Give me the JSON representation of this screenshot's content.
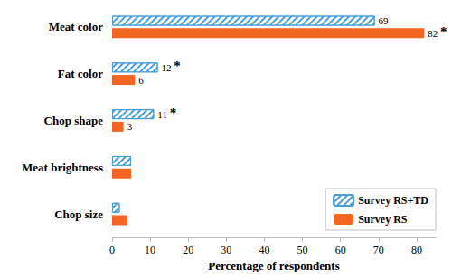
{
  "chart_data": {
    "type": "bar",
    "orientation": "horizontal",
    "x_label": "Percentage of respondents",
    "categories": [
      "Meat color",
      "Fat color",
      "Chop shape",
      "Meat brightness",
      "Chop size"
    ],
    "series": [
      {
        "name": "Survey RS+TD",
        "color": "#4a9fd8",
        "marker": "hatch",
        "values": [
          69,
          12,
          11,
          5,
          2
        ],
        "value_labels": [
          "69",
          "12",
          "11",
          null,
          null
        ]
      },
      {
        "name": "Survey RS",
        "color": "#f26522",
        "values": [
          82,
          6,
          3,
          5,
          4
        ],
        "value_labels": [
          "82",
          "6",
          "3",
          null,
          null
        ]
      }
    ],
    "annotations": [
      {
        "text": "*",
        "category": "Meat color",
        "series": "Survey RS"
      },
      {
        "text": "*",
        "category": "Fat color",
        "series": "Survey RS+TD"
      },
      {
        "text": "*",
        "category": "Chop shape",
        "series": "Survey RS+TD"
      }
    ],
    "xlim": [
      0,
      85
    ],
    "xticks": [
      0,
      10,
      20,
      30,
      40,
      50,
      60,
      70,
      80
    ],
    "grid": false,
    "legend": "lower right",
    "data_labels": true
  }
}
